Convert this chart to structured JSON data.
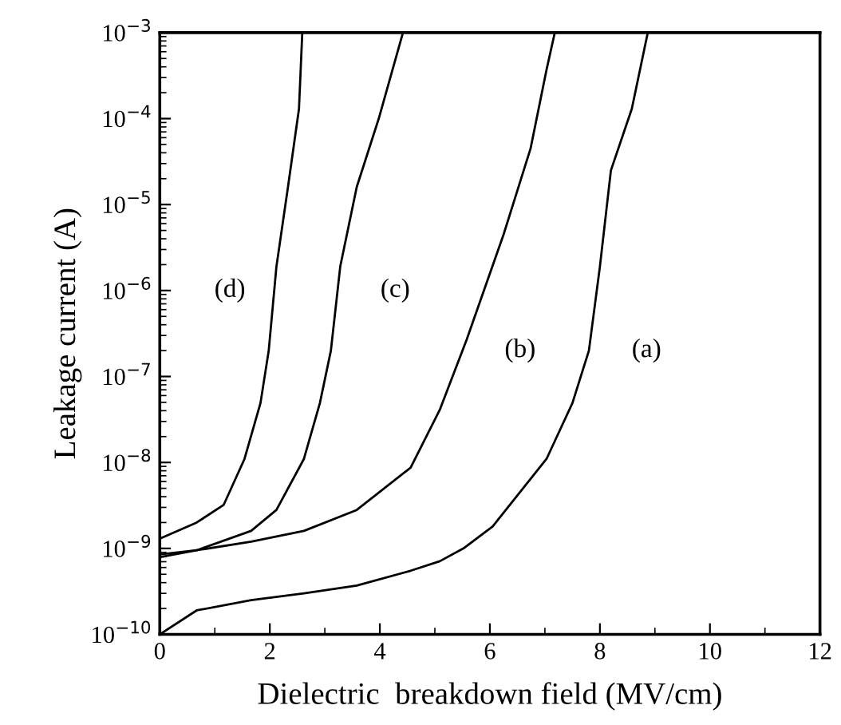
{
  "chart_data": {
    "type": "line",
    "xlabel": "Dielectric  breakdown field (MV/cm)",
    "ylabel": "Leakage current (A)",
    "log": "y",
    "grid": false,
    "marker": "none",
    "line_style": "solid",
    "xlim": [
      0,
      12
    ],
    "xticks": [
      0,
      2,
      4,
      6,
      8,
      10,
      12
    ],
    "ylim": [
      1e-10,
      0.001
    ],
    "yticks": [
      {
        "value": 1e-10,
        "label": "10$^{−10}$"
      },
      {
        "value": 1e-09,
        "label": "10$^{−9}$"
      },
      {
        "value": 1e-08,
        "label": "10$^{−8}$"
      },
      {
        "value": 1e-07,
        "label": "10$^{−7}$"
      },
      {
        "value": 1e-06,
        "label": "10$^{−6}$"
      },
      {
        "value": 1e-05,
        "label": "10$^{−5}$"
      },
      {
        "value": 0.0001,
        "label": "10$^{−4}$"
      },
      {
        "value": 0.001,
        "label": "10$^{−3}$"
      }
    ],
    "series": [
      {
        "name": "(a)",
        "color": "#000000",
        "x": [
          0,
          0.67,
          1.66,
          2.62,
          3.58,
          4.56,
          5.09,
          5.52,
          6.05,
          7.03,
          7.5,
          7.8,
          8.0,
          8.2,
          8.58,
          8.87
        ],
        "values": [
          1e-10,
          1.9e-10,
          2.5e-10,
          3e-10,
          3.7e-10,
          5.5e-10,
          7.1e-10,
          1e-09,
          1.8e-09,
          1.1e-08,
          4.9e-08,
          2e-07,
          1.9e-06,
          2.5e-05,
          0.00013,
          0.001
        ]
      },
      {
        "name": "(b)",
        "color": "#000000",
        "x": [
          0,
          0.67,
          1.66,
          2.62,
          3.58,
          4.56,
          5.09,
          5.58,
          6.25,
          6.74,
          7.03,
          7.18
        ],
        "values": [
          7.9e-10,
          9.5e-10,
          1.2e-09,
          1.6e-09,
          2.8e-09,
          8.7e-09,
          4.1e-08,
          2.7e-07,
          4.5e-06,
          4.5e-05,
          0.00037,
          0.001
        ]
      },
      {
        "name": "(c)",
        "color": "#000000",
        "x": [
          0,
          0.67,
          1.66,
          2.12,
          2.62,
          2.91,
          3.11,
          3.28,
          3.58,
          3.98,
          4.42
        ],
        "values": [
          8.5e-10,
          9.5e-10,
          1.6e-09,
          2.8e-09,
          1.1e-08,
          4.9e-08,
          2e-07,
          1.9e-06,
          1.6e-05,
          0.0001,
          0.001
        ]
      },
      {
        "name": "(d)",
        "color": "#000000",
        "x": [
          0,
          0.67,
          1.16,
          1.54,
          1.83,
          1.98,
          2.12,
          2.33,
          2.53,
          2.59
        ],
        "values": [
          1.3e-09,
          2e-09,
          3.2e-09,
          1.1e-08,
          4.9e-08,
          2e-07,
          1.9e-06,
          1.6e-05,
          0.00013,
          0.001
        ]
      }
    ]
  }
}
